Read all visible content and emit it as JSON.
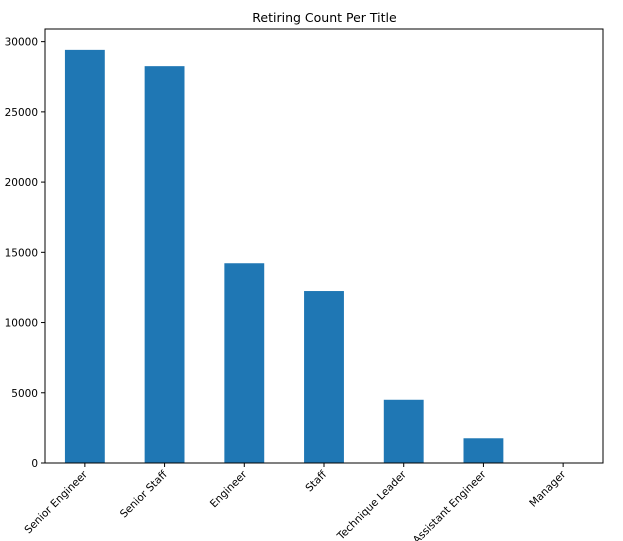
{
  "chart_data": {
    "type": "bar",
    "title": "Retiring Count Per Title",
    "xlabel": "",
    "ylabel": "",
    "categories": [
      "Senior Engineer",
      "Senior Staff",
      "Engineer",
      "Staff",
      "Technique Leader",
      "Assistant Engineer",
      "Manager"
    ],
    "values": [
      29414,
      28254,
      14222,
      12243,
      4502,
      1761,
      2
    ],
    "ylim": [
      0,
      30900
    ],
    "yticks": [
      0,
      5000,
      10000,
      15000,
      20000,
      25000,
      30000
    ],
    "ytick_labels": [
      "0",
      "5000",
      "10000",
      "15000",
      "20000",
      "25000",
      "30000"
    ],
    "bar_color": "#1f77b4",
    "grid": false,
    "legend": "none"
  }
}
